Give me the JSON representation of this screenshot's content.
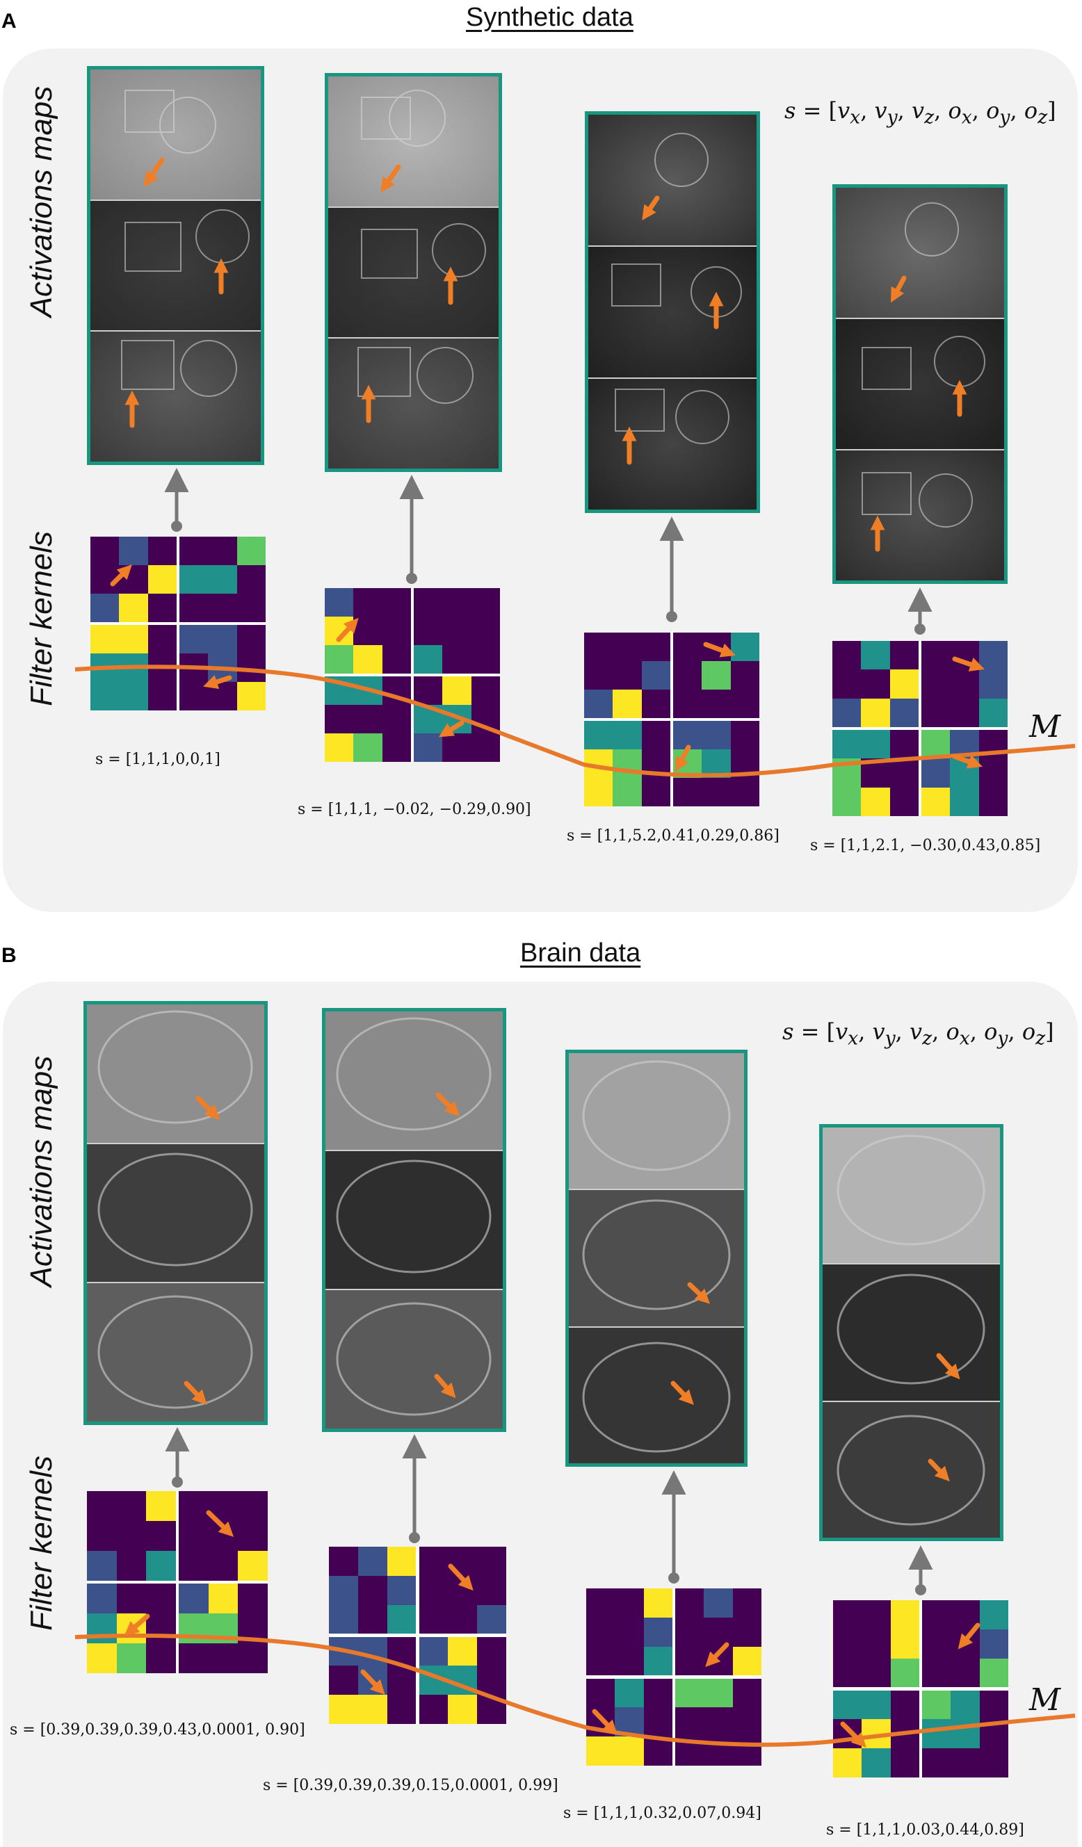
{
  "colors": {
    "panel_bg": "#f2f2f2",
    "frame": "#18967f",
    "curve": "#e8782a",
    "arrow": "#f07e26",
    "connector": "#777777",
    "kernel_dark": "#440154",
    "kernel_blue": "#3b528b",
    "kernel_teal": "#21918c",
    "kernel_green": "#5ec962",
    "kernel_yellow": "#fde725"
  },
  "panel_a": {
    "letter": "A",
    "title": "Synthetic data",
    "activations_label": "Activations maps",
    "kernels_label": "Filter kernels",
    "formula": "s = [v_x, v_y, v_z, o_x, o_y, o_z]",
    "curve_label": "M",
    "s_values": [
      "s = [1,1,1,0,0,1]",
      "s = [1,1,1, −0.02, −0.29,0.90]",
      "s = [1,1,5.2,0.41,0.29,0.86]",
      "s = [1,1,2.1, −0.30,0.43,0.85]"
    ]
  },
  "panel_b": {
    "letter": "B",
    "title": "Brain data",
    "activations_label": "Activations maps",
    "kernels_label": "Filter kernels",
    "formula": "s = [v_x, v_y, v_z, o_x, o_y, o_z]",
    "curve_label": "M",
    "s_values": [
      "s = [0.39,0.39,0.39,0.43,0.0001, 0.90]",
      "s = [0.39,0.39,0.39,0.15,0.0001, 0.99]",
      "s = [1,1,1,0.32,0.07,0.94]",
      "s = [1,1,1,0.03,0.44,0.89]"
    ]
  },
  "kernels": {
    "a": [
      [
        "D",
        "B",
        "D",
        "D",
        "D",
        "Y",
        "B",
        "Y",
        "D",
        "D",
        "D",
        "G",
        "T",
        "T",
        "D",
        "D",
        "D",
        "D",
        "Y",
        "Y",
        "D",
        "T",
        "T",
        "D",
        "T",
        "T",
        "D",
        "B",
        "B",
        "D"
      ],
      [
        "B",
        "D",
        "D",
        "Y",
        "D",
        "D",
        "G",
        "Y",
        "D",
        "D",
        "D",
        "D",
        "D",
        "D",
        "D",
        "T",
        "D",
        "D",
        "T",
        "T",
        "D",
        "D",
        "D",
        "D",
        "Y",
        "G",
        "D",
        "D",
        "Y",
        "D",
        "T",
        "T",
        "D",
        "B",
        "D",
        "D"
      ],
      [
        "D",
        "D",
        "D",
        "D",
        "D",
        "B",
        "B",
        "Y",
        "D",
        "D",
        "D",
        "T",
        "D",
        "G",
        "D",
        "D",
        "D",
        "D",
        "T",
        "T",
        "D",
        "Y",
        "G",
        "D",
        "Y",
        "G",
        "D",
        "B",
        "B",
        "D",
        "G",
        "T",
        "D",
        "D",
        "D",
        "D"
      ],
      [
        "D",
        "T",
        "D",
        "D",
        "D",
        "Y",
        "B",
        "Y",
        "B",
        "D",
        "D",
        "B",
        "D",
        "D",
        "B",
        "D",
        "D",
        "T",
        "T",
        "T",
        "D",
        "G",
        "D",
        "D",
        "G",
        "Y",
        "D",
        "G",
        "B",
        "D",
        "B",
        "T",
        "D",
        "Y",
        "T",
        "D"
      ]
    ],
    "b": [
      [
        "D",
        "D",
        "Y",
        "D",
        "D",
        "D",
        "B",
        "D",
        "T",
        "D",
        "D",
        "D",
        "D",
        "D",
        "D",
        "D",
        "D",
        "Y",
        "B",
        "D",
        "D",
        "T",
        "Y",
        "D",
        "Y",
        "G",
        "D",
        "B",
        "Y",
        "D",
        "G",
        "G",
        "D",
        "D",
        "D",
        "D"
      ],
      [
        "D",
        "B",
        "Y",
        "B",
        "D",
        "B",
        "B",
        "D",
        "T",
        "D",
        "D",
        "D",
        "D",
        "D",
        "D",
        "D",
        "D",
        "B",
        "B",
        "B",
        "D",
        "D",
        "B",
        "D",
        "Y",
        "Y",
        "D",
        "B",
        "Y",
        "D",
        "T",
        "T",
        "D",
        "D",
        "Y",
        "D"
      ],
      [
        "D",
        "D",
        "Y",
        "D",
        "D",
        "B",
        "D",
        "D",
        "T",
        "D",
        "B",
        "D",
        "D",
        "D",
        "D",
        "D",
        "D",
        "Y",
        "D",
        "T",
        "D",
        "D",
        "B",
        "D",
        "Y",
        "Y",
        "D",
        "G",
        "G",
        "D",
        "D",
        "D",
        "D",
        "D",
        "D",
        "D"
      ],
      [
        "D",
        "D",
        "Y",
        "D",
        "D",
        "Y",
        "D",
        "D",
        "G",
        "D",
        "D",
        "T",
        "D",
        "D",
        "B",
        "D",
        "D",
        "G",
        "T",
        "T",
        "D",
        "D",
        "Y",
        "D",
        "Y",
        "T",
        "D",
        "G",
        "T",
        "D",
        "T",
        "T",
        "D",
        "D",
        "D",
        "D"
      ]
    ]
  }
}
